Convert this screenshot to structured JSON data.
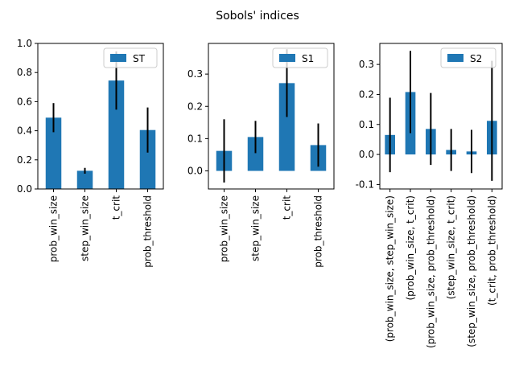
{
  "figure_title": "Sobols' indices",
  "colors": {
    "bar": "#1f77b4",
    "error": "#000000",
    "axis": "#000000",
    "legend_border": "#cccccc"
  },
  "chart_data": [
    {
      "type": "bar",
      "categories": [
        "prob_win_size",
        "step_win_size",
        "t_crit",
        "prob_threshold"
      ],
      "series": [
        {
          "name": "ST",
          "values": [
            0.49,
            0.125,
            0.745,
            0.405
          ],
          "errors": [
            0.1,
            0.02,
            0.2,
            0.155
          ]
        }
      ],
      "ylim": [
        0.0,
        1.0
      ],
      "yticks": [
        0.0,
        0.2,
        0.4,
        0.6,
        0.8,
        1.0
      ],
      "ytick_labels": [
        "0.0",
        "0.2",
        "0.4",
        "0.6",
        "0.8",
        "1.0"
      ],
      "legend": "top-right",
      "grid": false
    },
    {
      "type": "bar",
      "categories": [
        "prob_win_size",
        "step_win_size",
        "t_crit",
        "prob_threshold"
      ],
      "series": [
        {
          "name": "S1",
          "values": [
            0.062,
            0.105,
            0.272,
            0.08
          ],
          "errors": [
            0.098,
            0.05,
            0.105,
            0.067
          ]
        }
      ],
      "ylim": [
        -0.056,
        0.395
      ],
      "yticks": [
        0.0,
        0.1,
        0.2,
        0.3
      ],
      "ytick_labels": [
        "0.0",
        "0.1",
        "0.2",
        "0.3"
      ],
      "legend": "top-right",
      "grid": false
    },
    {
      "type": "bar",
      "categories": [
        "(prob_win_size, step_win_size)",
        "(prob_win_size, t_crit)",
        "(prob_win_size, prob_threshold)",
        "(step_win_size, t_crit)",
        "(step_win_size, prob_threshold)",
        "(t_crit, prob_threshold)"
      ],
      "series": [
        {
          "name": "S2",
          "values": [
            0.065,
            0.208,
            0.085,
            0.015,
            0.01,
            0.112
          ],
          "errors": [
            0.124,
            0.137,
            0.12,
            0.07,
            0.072,
            0.2
          ]
        }
      ],
      "ylim": [
        -0.115,
        0.37
      ],
      "yticks": [
        -0.1,
        0.0,
        0.1,
        0.2,
        0.3
      ],
      "ytick_labels": [
        "-0.1",
        "0.0",
        "0.1",
        "0.2",
        "0.3"
      ],
      "legend": "top-right",
      "grid": false
    }
  ]
}
